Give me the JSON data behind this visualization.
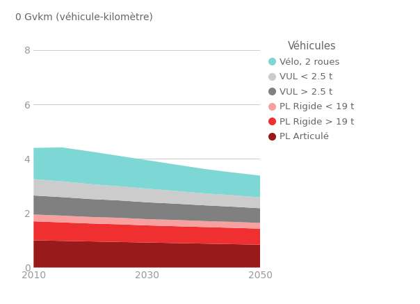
{
  "years": [
    2010,
    2015,
    2020,
    2025,
    2030,
    2035,
    2040,
    2045,
    2050
  ],
  "series": {
    "PL Articulé": [
      1.0,
      0.98,
      0.96,
      0.94,
      0.92,
      0.9,
      0.88,
      0.86,
      0.84
    ],
    "PL Rigide > 19 t": [
      0.7,
      0.68,
      0.66,
      0.65,
      0.63,
      0.62,
      0.61,
      0.6,
      0.59
    ],
    "PL Rigide < 19 t": [
      0.25,
      0.25,
      0.24,
      0.24,
      0.23,
      0.23,
      0.22,
      0.22,
      0.21
    ],
    "VUL > 2.5 t": [
      0.7,
      0.68,
      0.66,
      0.64,
      0.62,
      0.6,
      0.58,
      0.56,
      0.54
    ],
    "VUL < 2.5 t": [
      0.6,
      0.58,
      0.55,
      0.52,
      0.5,
      0.47,
      0.44,
      0.42,
      0.4
    ],
    "Vélo, 2 roues": [
      1.15,
      1.25,
      1.2,
      1.12,
      1.05,
      0.97,
      0.9,
      0.84,
      0.8
    ]
  },
  "colors": {
    "PL Articulé": "#991a1a",
    "PL Rigide > 19 t": "#f03030",
    "PL Rigide < 19 t": "#f8a0a0",
    "VUL > 2.5 t": "#808080",
    "VUL < 2.5 t": "#cccccc",
    "Vélo, 2 roues": "#7dd8d5"
  },
  "ylabel": "0 Gvkm (véhicule-kilomètre)",
  "yticks": [
    0,
    2,
    4,
    6,
    8
  ],
  "ylim": [
    0,
    8.5
  ],
  "xlim": [
    2010,
    2050
  ],
  "legend_title": "Véhicules",
  "legend_items": [
    "Vélo, 2 roues",
    "VUL < 2.5 t",
    "VUL > 2.5 t",
    "PL Rigide < 19 t",
    "PL Rigide > 19 t",
    "PL Articulé"
  ],
  "background_color": "#ffffff"
}
